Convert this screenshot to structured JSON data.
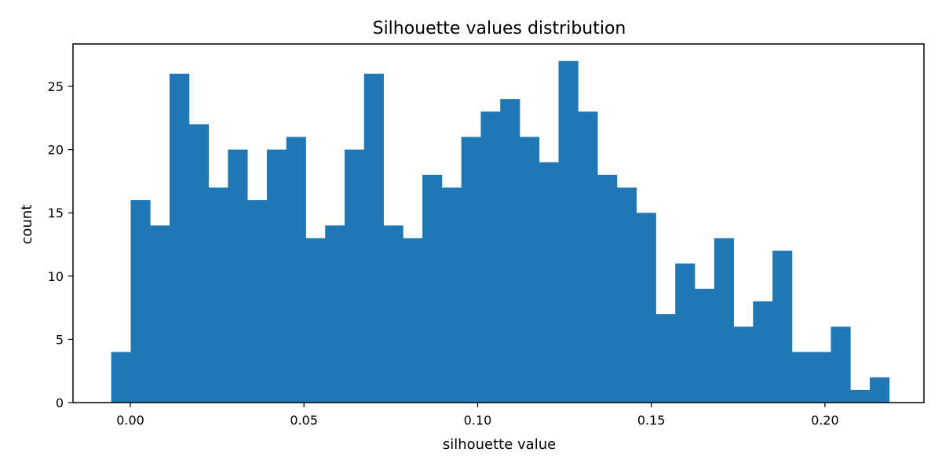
{
  "chart_data": {
    "type": "histogram",
    "title": "Silhouette values distribution",
    "xlabel": "silhouette value",
    "ylabel": "count",
    "xlim": [
      -0.0165,
      0.2285
    ],
    "ylim": [
      0,
      28.35
    ],
    "grid": false,
    "legend": null,
    "bar_color": "#1f77b4",
    "bin_edges": [
      -0.0055,
      0.0001,
      0.0057,
      0.0113,
      0.0169,
      0.0225,
      0.0281,
      0.0337,
      0.0393,
      0.0449,
      0.0505,
      0.0561,
      0.0617,
      0.0673,
      0.0729,
      0.0785,
      0.0841,
      0.0897,
      0.0953,
      0.1009,
      0.1065,
      0.1121,
      0.1177,
      0.1233,
      0.1289,
      0.1345,
      0.1401,
      0.1457,
      0.1513,
      0.1569,
      0.1625,
      0.1681,
      0.1737,
      0.1793,
      0.1849,
      0.1905,
      0.1961,
      0.2017,
      0.2073,
      0.2129,
      0.2185
    ],
    "values": [
      4,
      16,
      14,
      26,
      22,
      17,
      20,
      16,
      20,
      21,
      13,
      14,
      20,
      26,
      14,
      13,
      18,
      17,
      21,
      23,
      24,
      21,
      19,
      27,
      23,
      18,
      17,
      15,
      7,
      11,
      9,
      13,
      6,
      8,
      12,
      4,
      4,
      6,
      1,
      2
    ],
    "x_ticks": [
      {
        "value": 0.0,
        "label": "0.00"
      },
      {
        "value": 0.05,
        "label": "0.05"
      },
      {
        "value": 0.1,
        "label": "0.10"
      },
      {
        "value": 0.15,
        "label": "0.15"
      },
      {
        "value": 0.2,
        "label": "0.20"
      }
    ],
    "y_ticks": [
      {
        "value": 0,
        "label": "0"
      },
      {
        "value": 5,
        "label": "5"
      },
      {
        "value": 10,
        "label": "10"
      },
      {
        "value": 15,
        "label": "15"
      },
      {
        "value": 20,
        "label": "20"
      },
      {
        "value": 25,
        "label": "25"
      }
    ]
  }
}
